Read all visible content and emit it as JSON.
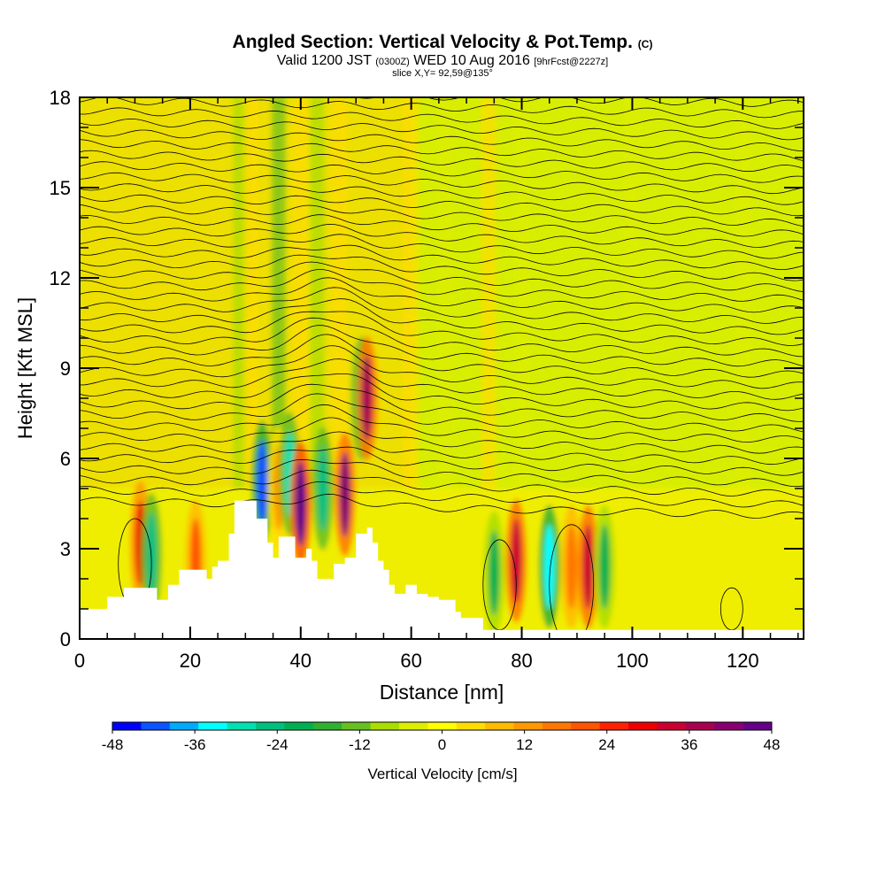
{
  "title": {
    "main": "Angled Section: Vertical Velocity & Pot.Temp.",
    "main_unit": "(C)",
    "valid_prefix": "Valid 1200 JST",
    "valid_zulu": "(0300Z)",
    "valid_date": "WED 10 Aug 2016",
    "valid_fcst": "[9hrFcst@2227z]",
    "slice": "slice X,Y= 92,59@135°"
  },
  "chart_data": {
    "type": "heatmap",
    "xlabel": "Distance [nm]",
    "ylabel": "Height [Kft MSL]",
    "xlim": [
      0,
      131
    ],
    "ylim": [
      0,
      18
    ],
    "x_ticks": [
      0,
      20,
      40,
      60,
      80,
      100,
      120
    ],
    "y_ticks": [
      0,
      3,
      6,
      9,
      12,
      15,
      18
    ],
    "field": "Vertical Velocity [cm/s]",
    "overlay": "Potential temperature contours (C)",
    "colorbar": {
      "label": "Vertical Velocity [cm/s]",
      "ticks": [
        -48,
        -36,
        -24,
        -12,
        0,
        12,
        24,
        36,
        48
      ],
      "colors": [
        "#0000ff",
        "#0a55ff",
        "#00aaff",
        "#00ffff",
        "#00e0b0",
        "#00c080",
        "#00b050",
        "#30b030",
        "#66c020",
        "#aadd00",
        "#ddee00",
        "#ffff00",
        "#ffdd00",
        "#ffbb00",
        "#ff9900",
        "#ff7700",
        "#ff5500",
        "#ff2200",
        "#ee0000",
        "#cc0030",
        "#aa0050",
        "#880070",
        "#660088"
      ]
    },
    "updrafts": [
      {
        "x": 11,
        "z": 3.2,
        "w": 30
      },
      {
        "x": 13,
        "z": 2.8,
        "w": -28
      },
      {
        "x": 21,
        "z": 2.6,
        "w": 22
      },
      {
        "x": 33,
        "z": 5.2,
        "w": -42
      },
      {
        "x": 36,
        "z": 5.0,
        "w": 12
      },
      {
        "x": 38,
        "z": 5.5,
        "w": -30
      },
      {
        "x": 40,
        "z": 4.5,
        "w": 46
      },
      {
        "x": 44,
        "z": 5.0,
        "w": -28
      },
      {
        "x": 48,
        "z": 4.8,
        "w": 42
      },
      {
        "x": 51,
        "z": 8.0,
        "w": -32
      },
      {
        "x": 52,
        "z": 8.0,
        "w": 40
      },
      {
        "x": 75,
        "z": 2.2,
        "w": -24
      },
      {
        "x": 79,
        "z": 2.6,
        "w": 36
      },
      {
        "x": 85,
        "z": 2.4,
        "w": -34
      },
      {
        "x": 89,
        "z": 2.4,
        "w": 18
      },
      {
        "x": 92,
        "z": 2.4,
        "w": 36
      },
      {
        "x": 95,
        "z": 2.4,
        "w": -20
      }
    ],
    "terrain": [
      [
        0,
        1
      ],
      [
        2,
        1
      ],
      [
        5,
        1.4
      ],
      [
        7,
        1.4
      ],
      [
        8,
        1.7
      ],
      [
        13,
        1.7
      ],
      [
        14,
        1.3
      ],
      [
        15,
        1.3
      ],
      [
        16,
        1.8
      ],
      [
        18,
        2.3
      ],
      [
        22,
        2.3
      ],
      [
        23,
        2.0
      ],
      [
        24,
        2.4
      ],
      [
        25,
        2.6
      ],
      [
        27,
        3.5
      ],
      [
        28,
        4.6
      ],
      [
        30,
        4.6
      ],
      [
        32,
        4.0
      ],
      [
        34,
        3.2
      ],
      [
        35,
        2.7
      ],
      [
        36,
        3.4
      ],
      [
        38,
        3.4
      ],
      [
        39,
        2.7
      ],
      [
        41,
        3.0
      ],
      [
        42,
        2.6
      ],
      [
        43,
        2.0
      ],
      [
        45,
        2.0
      ],
      [
        46,
        2.5
      ],
      [
        48,
        2.7
      ],
      [
        50,
        3.5
      ],
      [
        52,
        3.7
      ],
      [
        53,
        3.2
      ],
      [
        54,
        2.6
      ],
      [
        55,
        2.3
      ],
      [
        56,
        1.8
      ],
      [
        57,
        1.5
      ],
      [
        59,
        1.8
      ],
      [
        61,
        1.5
      ],
      [
        63,
        1.4
      ],
      [
        65,
        1.3
      ],
      [
        67,
        1.3
      ],
      [
        68,
        0.9
      ],
      [
        69,
        0.7
      ],
      [
        73,
        0.3
      ],
      [
        131,
        0.3
      ]
    ]
  }
}
